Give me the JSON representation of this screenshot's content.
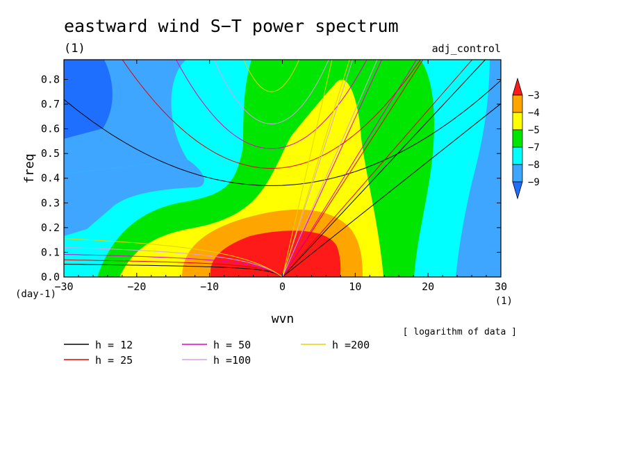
{
  "chart_data": {
    "type": "heatmap",
    "title": "eastward wind S−T power spectrum",
    "subtitle_left": "(1)",
    "subtitle_right": "adj_control",
    "xlabel": "wvn",
    "ylabel": "freq",
    "x_unit": "(1)",
    "y_unit": "(day-1)",
    "xlim": [
      -30,
      30
    ],
    "ylim": [
      0,
      0.88
    ],
    "x_ticks": [
      -30,
      -20,
      -10,
      0,
      10,
      20,
      30
    ],
    "x_tick_labels": [
      "−30",
      "−20",
      "−10",
      "0",
      "10",
      "20",
      "30"
    ],
    "y_ticks": [
      0,
      0.1,
      0.2,
      0.3,
      0.4,
      0.5,
      0.6,
      0.7,
      0.8
    ],
    "y_tick_labels": [
      "0.0",
      "0.1",
      "0.2",
      "0.3",
      "0.4",
      "0.5",
      "0.6",
      "0.7",
      "0.8"
    ],
    "note": "[ logarithm of data ]",
    "colorbar": {
      "levels": [
        -9,
        -8,
        -7,
        -5,
        -4,
        -3
      ],
      "labels": [
        "−9",
        "−8",
        "−7",
        "−5",
        "−4",
        "−3"
      ],
      "colors": [
        "#1f6fff",
        "#3fa6ff",
        "#00ffff",
        "#00e600",
        "#ffff00",
        "#ffa500",
        "#ff1a1a"
      ]
    },
    "contour_bands": [
      {
        "level": "below -9",
        "color": "#1f6fff",
        "region": "upper-left corner"
      },
      {
        "level": "-9 to -8",
        "color": "#3fa6ff",
        "region": "left and right edges"
      },
      {
        "level": "-8 to -7",
        "color": "#00ffff",
        "region": "broad background"
      },
      {
        "level": "-7 to -5",
        "color": "#00e600",
        "region": "central tongue"
      },
      {
        "level": "-5 to -4",
        "color": "#ffff00",
        "region": "central tongue extending to wvn 8, freq 0.78"
      },
      {
        "level": "-4 to -3",
        "color": "#ffa500",
        "region": "low frequency core"
      },
      {
        "level": "above -3",
        "color": "#ff1a1a",
        "region": "peak near wvn 0-7, freq < 0.18"
      }
    ],
    "dispersion_curves": [
      {
        "name": "h = 12",
        "color": "#000000"
      },
      {
        "name": "h = 25",
        "color": "#e60000"
      },
      {
        "name": "h = 50",
        "color": "#e600c8"
      },
      {
        "name": "h =100",
        "color": "#d8a0e8"
      },
      {
        "name": "h =200",
        "color": "#e6d200"
      }
    ]
  }
}
